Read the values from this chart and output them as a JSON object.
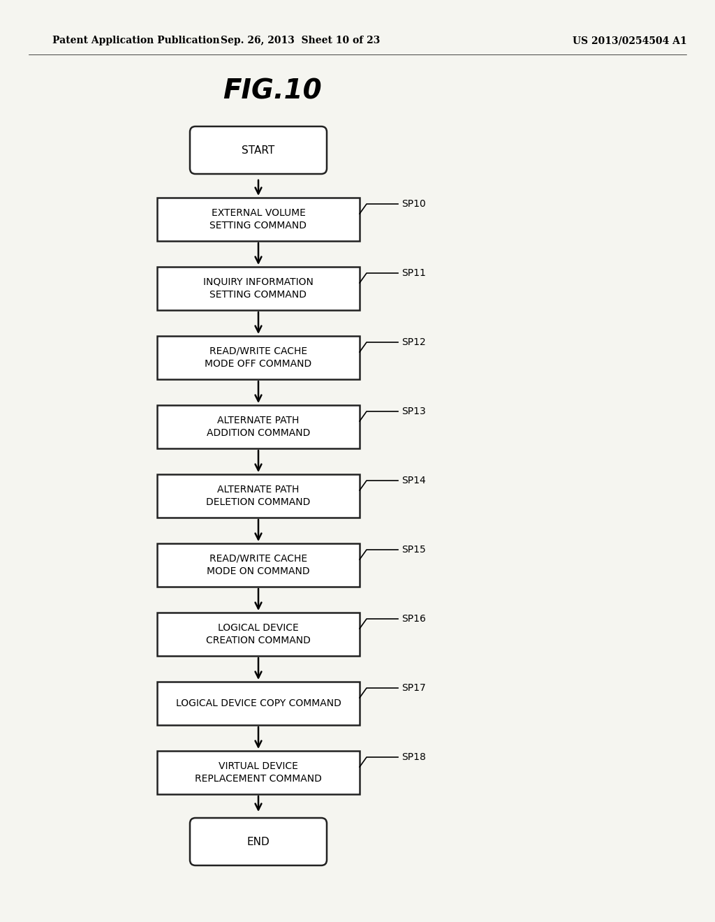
{
  "title": "FIG.10",
  "header_left": "Patent Application Publication",
  "header_center": "Sep. 26, 2013  Sheet 10 of 23",
  "header_right": "US 2013/0254504 A1",
  "background_color": "#f5f5f0",
  "steps": [
    {
      "label": "START",
      "type": "rounded",
      "tag": null
    },
    {
      "label": "EXTERNAL VOLUME\nSETTING COMMAND",
      "type": "rect",
      "tag": "SP10"
    },
    {
      "label": "INQUIRY INFORMATION\nSETTING COMMAND",
      "type": "rect",
      "tag": "SP11"
    },
    {
      "label": "READ/WRITE CACHE\nMODE OFF COMMAND",
      "type": "rect",
      "tag": "SP12"
    },
    {
      "label": "ALTERNATE PATH\nADDITION COMMAND",
      "type": "rect",
      "tag": "SP13"
    },
    {
      "label": "ALTERNATE PATH\nDELETION COMMAND",
      "type": "rect",
      "tag": "SP14"
    },
    {
      "label": "READ/WRITE CACHE\nMODE ON COMMAND",
      "type": "rect",
      "tag": "SP15"
    },
    {
      "label": "LOGICAL DEVICE\nCREATION COMMAND",
      "type": "rect",
      "tag": "SP16"
    },
    {
      "label": "LOGICAL DEVICE COPY COMMAND",
      "type": "rect",
      "tag": "SP17"
    },
    {
      "label": "VIRTUAL DEVICE\nREPLACEMENT COMMAND",
      "type": "rect",
      "tag": "SP18"
    },
    {
      "label": "END",
      "type": "rounded",
      "tag": null
    }
  ],
  "fig_width": 10.24,
  "fig_height": 13.2,
  "dpi": 100
}
